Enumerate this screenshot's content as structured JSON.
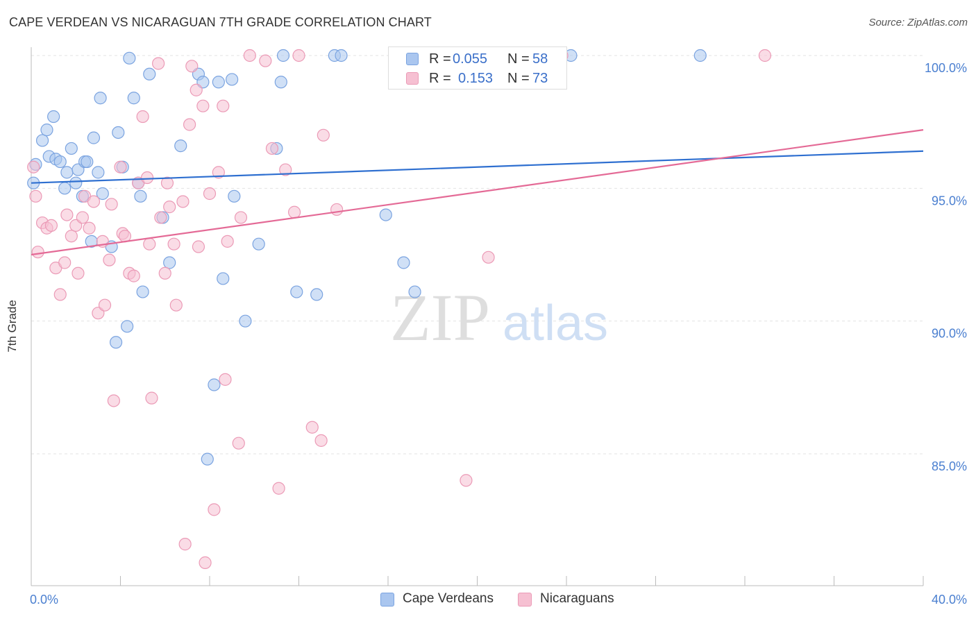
{
  "header": {
    "title": "CAPE VERDEAN VS NICARAGUAN 7TH GRADE CORRELATION CHART",
    "source": "Source: ZipAtlas.com"
  },
  "watermark": {
    "zip": "ZIP",
    "atlas": "atlas"
  },
  "legend_top": [
    {
      "r_label": "R =",
      "r_value": "0.055",
      "n_label": "N =",
      "n_value": "58"
    },
    {
      "r_label": "R =",
      "r_value": "0.153",
      "n_label": "N =",
      "n_value": "73"
    }
  ],
  "legend_bottom": [
    {
      "label": "Cape Verdeans"
    },
    {
      "label": "Nicaraguans"
    }
  ],
  "chart_data": {
    "type": "scatter",
    "title": "CAPE VERDEAN VS NICARAGUAN 7TH GRADE CORRELATION CHART",
    "xlabel": "",
    "ylabel": "7th Grade",
    "xlim": [
      0,
      40
    ],
    "ylim": [
      80.6,
      100.6
    ],
    "x_tick_labels": [
      "0.0%",
      "40.0%"
    ],
    "y_ticks": [
      85,
      90,
      95,
      100
    ],
    "y_tick_labels": [
      "85.0%",
      "90.0%",
      "95.0%",
      "100.0%"
    ],
    "grid": true,
    "colors": {
      "cape_verdeans_fill": "#aac6ef",
      "cape_verdeans_stroke": "#7aa3e0",
      "cape_verdeans_line": "#2e6fd0",
      "nicaraguans_fill": "#f6c0d2",
      "nicaraguans_stroke": "#eb9ab6",
      "nicaraguans_line": "#e46a96",
      "tick_label": "#4a7fd0"
    },
    "series": [
      {
        "name": "Cape Verdeans",
        "r": 0.055,
        "n": 58,
        "trend": {
          "x": [
            0,
            40
          ],
          "y": [
            95.2,
            96.4
          ]
        },
        "points": [
          [
            0.1,
            95.2
          ],
          [
            0.2,
            95.9
          ],
          [
            0.5,
            96.8
          ],
          [
            0.7,
            97.2
          ],
          [
            0.8,
            96.2
          ],
          [
            1.0,
            97.7
          ],
          [
            1.1,
            96.1
          ],
          [
            1.3,
            96.0
          ],
          [
            1.5,
            95.0
          ],
          [
            1.6,
            95.6
          ],
          [
            1.8,
            96.5
          ],
          [
            2.0,
            95.2
          ],
          [
            2.1,
            95.7
          ],
          [
            2.3,
            94.7
          ],
          [
            2.4,
            96.0
          ],
          [
            2.5,
            96.0
          ],
          [
            2.7,
            93.0
          ],
          [
            2.8,
            96.9
          ],
          [
            3.0,
            95.6
          ],
          [
            3.1,
            98.4
          ],
          [
            3.2,
            94.8
          ],
          [
            3.6,
            92.8
          ],
          [
            3.8,
            89.2
          ],
          [
            3.9,
            97.1
          ],
          [
            4.1,
            95.8
          ],
          [
            4.3,
            89.8
          ],
          [
            4.4,
            99.9
          ],
          [
            4.6,
            98.4
          ],
          [
            4.8,
            95.2
          ],
          [
            4.9,
            94.7
          ],
          [
            5.0,
            91.1
          ],
          [
            5.3,
            99.3
          ],
          [
            5.9,
            93.9
          ],
          [
            6.2,
            92.2
          ],
          [
            6.7,
            96.6
          ],
          [
            7.5,
            99.3
          ],
          [
            7.7,
            99.0
          ],
          [
            7.9,
            84.8
          ],
          [
            8.2,
            87.6
          ],
          [
            8.4,
            99.0
          ],
          [
            8.6,
            91.6
          ],
          [
            9.0,
            99.1
          ],
          [
            9.1,
            94.7
          ],
          [
            9.6,
            90.0
          ],
          [
            10.2,
            92.9
          ],
          [
            11.0,
            96.5
          ],
          [
            11.2,
            99.0
          ],
          [
            11.3,
            100.0
          ],
          [
            11.9,
            91.1
          ],
          [
            12.8,
            91.0
          ],
          [
            13.6,
            100.0
          ],
          [
            13.9,
            100.0
          ],
          [
            15.9,
            94.0
          ],
          [
            16.7,
            92.2
          ],
          [
            17.2,
            91.1
          ],
          [
            17.5,
            100.0
          ],
          [
            24.2,
            100.0
          ],
          [
            30.0,
            100.0
          ]
        ]
      },
      {
        "name": "Nicaraguans",
        "r": 0.153,
        "n": 73,
        "trend": {
          "x": [
            0,
            40
          ],
          "y": [
            92.5,
            97.2
          ]
        },
        "points": [
          [
            0.1,
            95.8
          ],
          [
            0.2,
            94.7
          ],
          [
            0.3,
            92.6
          ],
          [
            0.5,
            93.7
          ],
          [
            0.7,
            93.5
          ],
          [
            0.9,
            93.6
          ],
          [
            1.1,
            92.0
          ],
          [
            1.3,
            91.0
          ],
          [
            1.5,
            92.2
          ],
          [
            1.6,
            94.0
          ],
          [
            1.8,
            93.2
          ],
          [
            2.0,
            93.6
          ],
          [
            2.1,
            91.8
          ],
          [
            2.3,
            93.9
          ],
          [
            2.4,
            94.7
          ],
          [
            2.6,
            93.5
          ],
          [
            2.8,
            94.5
          ],
          [
            3.0,
            90.3
          ],
          [
            3.2,
            93.0
          ],
          [
            3.3,
            90.6
          ],
          [
            3.5,
            92.3
          ],
          [
            3.6,
            94.4
          ],
          [
            3.7,
            87.0
          ],
          [
            4.0,
            95.8
          ],
          [
            4.1,
            93.3
          ],
          [
            4.2,
            93.2
          ],
          [
            4.4,
            91.8
          ],
          [
            4.6,
            91.7
          ],
          [
            4.8,
            95.2
          ],
          [
            5.0,
            97.7
          ],
          [
            5.2,
            95.4
          ],
          [
            5.3,
            92.9
          ],
          [
            5.4,
            87.1
          ],
          [
            5.7,
            99.7
          ],
          [
            5.8,
            93.9
          ],
          [
            6.0,
            91.8
          ],
          [
            6.1,
            95.2
          ],
          [
            6.2,
            94.3
          ],
          [
            6.4,
            92.9
          ],
          [
            6.5,
            90.6
          ],
          [
            6.8,
            94.5
          ],
          [
            6.9,
            81.6
          ],
          [
            7.1,
            97.4
          ],
          [
            7.2,
            99.6
          ],
          [
            7.4,
            98.7
          ],
          [
            7.5,
            92.8
          ],
          [
            7.7,
            98.1
          ],
          [
            7.8,
            80.9
          ],
          [
            8.0,
            94.8
          ],
          [
            8.2,
            82.9
          ],
          [
            8.4,
            95.6
          ],
          [
            8.6,
            98.1
          ],
          [
            8.7,
            87.8
          ],
          [
            8.8,
            93.0
          ],
          [
            9.3,
            85.4
          ],
          [
            9.4,
            93.9
          ],
          [
            9.8,
            100.0
          ],
          [
            10.5,
            99.8
          ],
          [
            10.8,
            96.5
          ],
          [
            11.1,
            83.7
          ],
          [
            11.4,
            95.7
          ],
          [
            11.8,
            94.1
          ],
          [
            12.0,
            100.0
          ],
          [
            12.6,
            86.0
          ],
          [
            13.0,
            85.5
          ],
          [
            13.1,
            97.0
          ],
          [
            13.7,
            94.2
          ],
          [
            16.4,
            100.0
          ],
          [
            19.5,
            84.0
          ],
          [
            20.5,
            92.4
          ],
          [
            22.0,
            100.0
          ],
          [
            23.8,
            100.0
          ],
          [
            32.9,
            100.0
          ]
        ]
      }
    ]
  }
}
